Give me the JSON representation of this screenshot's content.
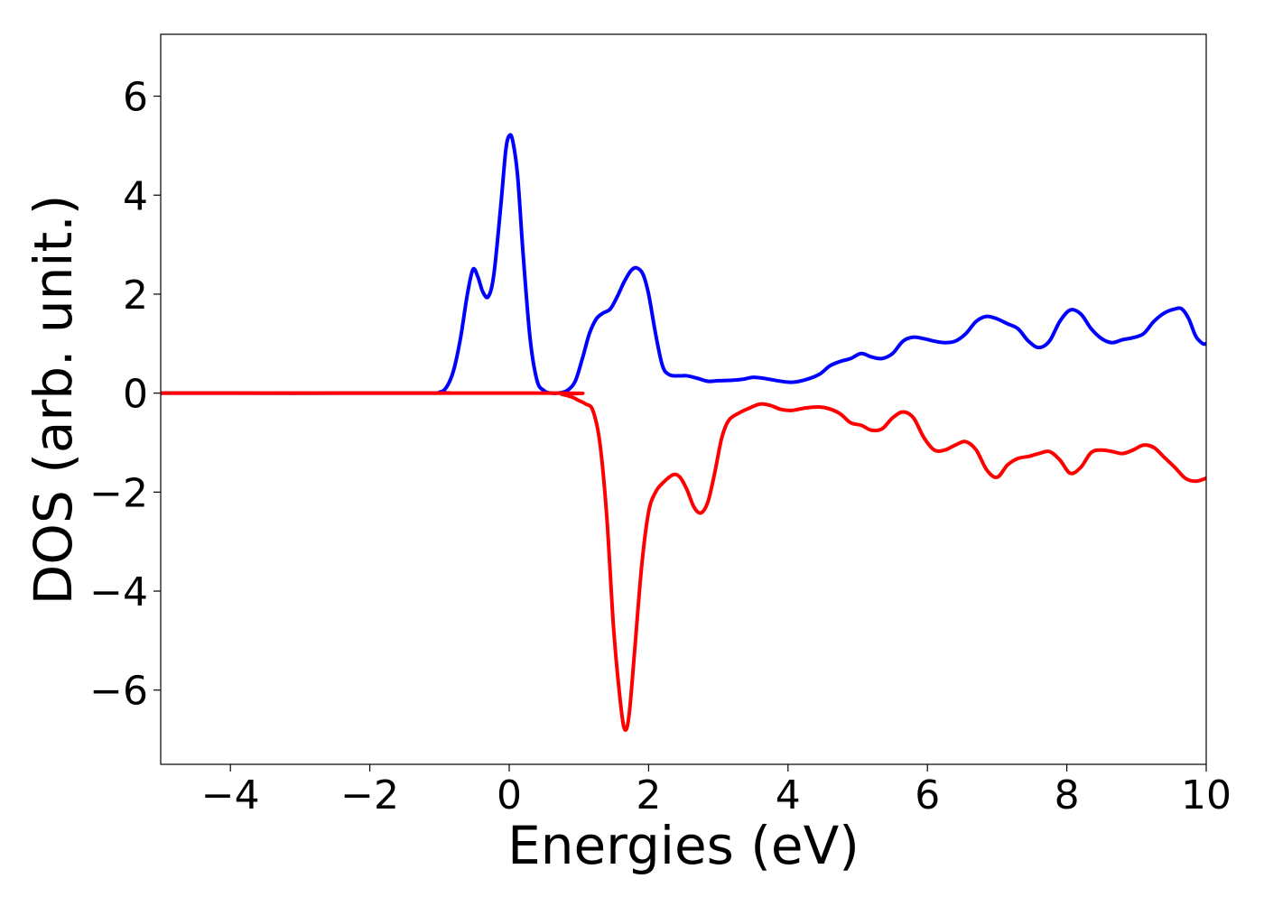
{
  "chart_data": {
    "type": "line",
    "title": "",
    "xlabel": "Energies (eV)",
    "ylabel": "DOS (arb. unit.)",
    "xlim": [
      -5,
      10
    ],
    "ylim": [
      -7.5,
      7.25
    ],
    "x_ticks": [
      -4,
      -2,
      0,
      2,
      4,
      6,
      8,
      10
    ],
    "x_tick_labels": [
      "−4",
      "−2",
      "0",
      "2",
      "4",
      "6",
      "8",
      "10"
    ],
    "y_ticks": [
      -6,
      -4,
      -2,
      0,
      2,
      4,
      6
    ],
    "y_tick_labels": [
      "−6",
      "−4",
      "−2",
      "0",
      "2",
      "4",
      "6"
    ],
    "grid": false,
    "legend": "none",
    "series": [
      {
        "color": "#0000ff",
        "points": [
          [
            -5.0,
            0.0
          ],
          [
            -1.2,
            0.0
          ],
          [
            -1.0,
            0.02
          ],
          [
            -0.9,
            0.12
          ],
          [
            -0.8,
            0.45
          ],
          [
            -0.7,
            1.1
          ],
          [
            -0.6,
            2.0
          ],
          [
            -0.52,
            2.5
          ],
          [
            -0.45,
            2.35
          ],
          [
            -0.38,
            2.05
          ],
          [
            -0.3,
            1.95
          ],
          [
            -0.22,
            2.4
          ],
          [
            -0.12,
            3.8
          ],
          [
            -0.05,
            4.9
          ],
          [
            0.0,
            5.2
          ],
          [
            0.05,
            5.1
          ],
          [
            0.12,
            4.4
          ],
          [
            0.2,
            2.8
          ],
          [
            0.3,
            1.1
          ],
          [
            0.4,
            0.25
          ],
          [
            0.5,
            0.05
          ],
          [
            0.6,
            0.0
          ],
          [
            0.75,
            0.01
          ],
          [
            0.85,
            0.07
          ],
          [
            0.95,
            0.25
          ],
          [
            1.05,
            0.7
          ],
          [
            1.15,
            1.2
          ],
          [
            1.25,
            1.5
          ],
          [
            1.35,
            1.62
          ],
          [
            1.45,
            1.7
          ],
          [
            1.55,
            1.95
          ],
          [
            1.65,
            2.25
          ],
          [
            1.75,
            2.48
          ],
          [
            1.83,
            2.53
          ],
          [
            1.92,
            2.4
          ],
          [
            2.0,
            2.0
          ],
          [
            2.1,
            1.2
          ],
          [
            2.2,
            0.55
          ],
          [
            2.3,
            0.37
          ],
          [
            2.45,
            0.35
          ],
          [
            2.55,
            0.35
          ],
          [
            2.7,
            0.3
          ],
          [
            2.85,
            0.24
          ],
          [
            3.0,
            0.25
          ],
          [
            3.2,
            0.26
          ],
          [
            3.35,
            0.28
          ],
          [
            3.5,
            0.32
          ],
          [
            3.65,
            0.3
          ],
          [
            3.85,
            0.25
          ],
          [
            4.05,
            0.22
          ],
          [
            4.25,
            0.27
          ],
          [
            4.45,
            0.38
          ],
          [
            4.6,
            0.55
          ],
          [
            4.75,
            0.64
          ],
          [
            4.9,
            0.7
          ],
          [
            5.05,
            0.8
          ],
          [
            5.2,
            0.73
          ],
          [
            5.35,
            0.7
          ],
          [
            5.5,
            0.8
          ],
          [
            5.65,
            1.05
          ],
          [
            5.8,
            1.13
          ],
          [
            5.95,
            1.1
          ],
          [
            6.1,
            1.05
          ],
          [
            6.25,
            1.02
          ],
          [
            6.4,
            1.05
          ],
          [
            6.55,
            1.2
          ],
          [
            6.7,
            1.45
          ],
          [
            6.85,
            1.55
          ],
          [
            7.0,
            1.5
          ],
          [
            7.15,
            1.4
          ],
          [
            7.3,
            1.3
          ],
          [
            7.45,
            1.05
          ],
          [
            7.6,
            0.92
          ],
          [
            7.75,
            1.05
          ],
          [
            7.9,
            1.45
          ],
          [
            8.05,
            1.68
          ],
          [
            8.2,
            1.6
          ],
          [
            8.35,
            1.3
          ],
          [
            8.5,
            1.1
          ],
          [
            8.65,
            1.02
          ],
          [
            8.8,
            1.08
          ],
          [
            8.95,
            1.12
          ],
          [
            9.1,
            1.2
          ],
          [
            9.25,
            1.45
          ],
          [
            9.4,
            1.62
          ],
          [
            9.55,
            1.7
          ],
          [
            9.65,
            1.7
          ],
          [
            9.75,
            1.5
          ],
          [
            9.85,
            1.15
          ],
          [
            9.95,
            1.0
          ],
          [
            10.0,
            1.0
          ]
        ]
      },
      {
        "color": "#ff0000",
        "points": [
          [
            -5.0,
            0.0
          ],
          [
            0.6,
            0.0
          ],
          [
            0.75,
            -0.02
          ],
          [
            0.9,
            -0.08
          ],
          [
            1.0,
            -0.15
          ],
          [
            1.1,
            -0.22
          ],
          [
            1.2,
            -0.35
          ],
          [
            1.3,
            -1.0
          ],
          [
            1.4,
            -2.5
          ],
          [
            1.5,
            -4.8
          ],
          [
            1.6,
            -6.3
          ],
          [
            1.66,
            -6.8
          ],
          [
            1.72,
            -6.5
          ],
          [
            1.8,
            -5.2
          ],
          [
            1.9,
            -3.5
          ],
          [
            2.0,
            -2.4
          ],
          [
            2.1,
            -2.0
          ],
          [
            2.2,
            -1.82
          ],
          [
            2.35,
            -1.65
          ],
          [
            2.45,
            -1.7
          ],
          [
            2.55,
            -1.95
          ],
          [
            2.65,
            -2.3
          ],
          [
            2.75,
            -2.42
          ],
          [
            2.85,
            -2.2
          ],
          [
            2.95,
            -1.6
          ],
          [
            3.05,
            -0.9
          ],
          [
            3.15,
            -0.55
          ],
          [
            3.3,
            -0.4
          ],
          [
            3.45,
            -0.3
          ],
          [
            3.6,
            -0.22
          ],
          [
            3.75,
            -0.25
          ],
          [
            3.9,
            -0.33
          ],
          [
            4.05,
            -0.35
          ],
          [
            4.25,
            -0.3
          ],
          [
            4.45,
            -0.28
          ],
          [
            4.6,
            -0.32
          ],
          [
            4.75,
            -0.42
          ],
          [
            4.9,
            -0.6
          ],
          [
            5.05,
            -0.65
          ],
          [
            5.2,
            -0.75
          ],
          [
            5.35,
            -0.72
          ],
          [
            5.5,
            -0.5
          ],
          [
            5.65,
            -0.38
          ],
          [
            5.8,
            -0.5
          ],
          [
            5.95,
            -0.9
          ],
          [
            6.1,
            -1.15
          ],
          [
            6.25,
            -1.15
          ],
          [
            6.4,
            -1.05
          ],
          [
            6.55,
            -0.98
          ],
          [
            6.7,
            -1.15
          ],
          [
            6.85,
            -1.55
          ],
          [
            7.0,
            -1.7
          ],
          [
            7.15,
            -1.45
          ],
          [
            7.3,
            -1.32
          ],
          [
            7.45,
            -1.28
          ],
          [
            7.6,
            -1.22
          ],
          [
            7.75,
            -1.18
          ],
          [
            7.9,
            -1.35
          ],
          [
            8.05,
            -1.62
          ],
          [
            8.2,
            -1.5
          ],
          [
            8.35,
            -1.2
          ],
          [
            8.5,
            -1.15
          ],
          [
            8.65,
            -1.18
          ],
          [
            8.8,
            -1.22
          ],
          [
            8.95,
            -1.15
          ],
          [
            9.1,
            -1.05
          ],
          [
            9.25,
            -1.1
          ],
          [
            9.4,
            -1.3
          ],
          [
            9.55,
            -1.5
          ],
          [
            9.7,
            -1.72
          ],
          [
            9.85,
            -1.78
          ],
          [
            10.0,
            -1.72
          ]
        ]
      }
    ]
  }
}
